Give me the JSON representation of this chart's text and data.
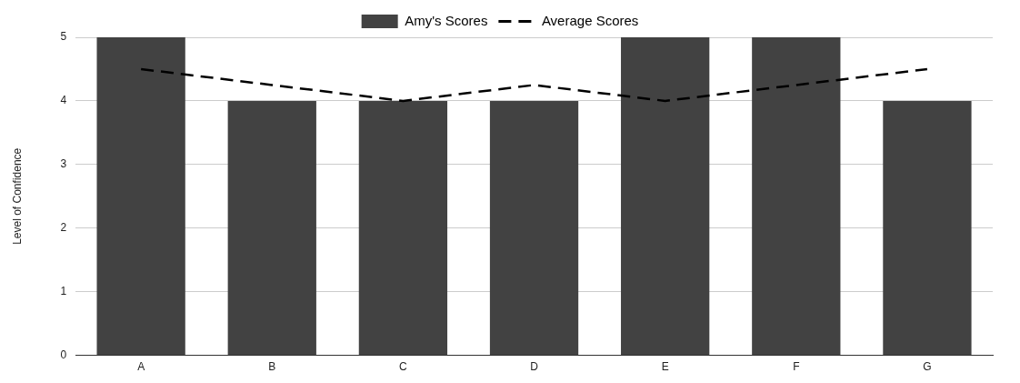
{
  "chart_data": {
    "type": "bar",
    "ylabel": "Level of Confidence",
    "categories": [
      "A",
      "B",
      "C",
      "D",
      "E",
      "F",
      "G"
    ],
    "series": [
      {
        "name": "Amy's Scores",
        "color": "#424242",
        "values": [
          5,
          4,
          4,
          4,
          5,
          5,
          4
        ]
      },
      {
        "name": "Average Scores",
        "type": "line",
        "color": "#000000",
        "line_style": "dashed",
        "marker": "none",
        "values": [
          4.5,
          4.25,
          4,
          4.25,
          4,
          4.25,
          4.5
        ]
      }
    ],
    "ylim": [
      0,
      5
    ],
    "yticks": [
      0,
      1,
      2,
      3,
      4,
      5
    ],
    "grid": "y",
    "legend": "top"
  }
}
